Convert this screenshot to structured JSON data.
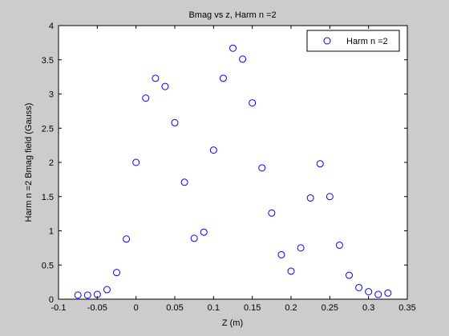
{
  "chart_data": {
    "type": "scatter",
    "title": "Bmag vs z, Harm n =2",
    "xlabel": "Z (m)",
    "ylabel": "Harm n =2 Bmag field (Gauss)",
    "xlim": [
      -0.1,
      0.35
    ],
    "ylim": [
      0,
      4
    ],
    "xticks": [
      -0.1,
      -0.05,
      0,
      0.05,
      0.1,
      0.15,
      0.2,
      0.25,
      0.3,
      0.35
    ],
    "xtick_labels": [
      "-0.1",
      "-0.05",
      "0",
      "0.05",
      "0.1",
      "0.15",
      "0.2",
      "0.25",
      "0.3",
      "0.35"
    ],
    "yticks": [
      0,
      0.5,
      1,
      1.5,
      2,
      2.5,
      3,
      3.5,
      4
    ],
    "ytick_labels": [
      "0",
      "0.5",
      "1",
      "1.5",
      "2",
      "2.5",
      "3",
      "3.5",
      "4"
    ],
    "grid": false,
    "legend_position": "top-right",
    "marker_color": "#0000ff",
    "series": [
      {
        "name": "Harm n =2",
        "x": [
          -0.075,
          -0.0625,
          -0.05,
          -0.0375,
          -0.025,
          -0.0125,
          0,
          0.0125,
          0.025,
          0.0375,
          0.05,
          0.0625,
          0.075,
          0.0875,
          0.1,
          0.1125,
          0.125,
          0.1375,
          0.15,
          0.1625,
          0.175,
          0.1875,
          0.2,
          0.2125,
          0.225,
          0.2375,
          0.25,
          0.2625,
          0.275,
          0.2875,
          0.3,
          0.3125,
          0.325
        ],
        "y": [
          0.06,
          0.06,
          0.07,
          0.14,
          0.39,
          0.88,
          2.0,
          2.94,
          3.23,
          3.11,
          2.58,
          1.71,
          0.89,
          0.98,
          2.18,
          3.23,
          3.67,
          3.51,
          2.87,
          1.92,
          1.26,
          0.65,
          0.41,
          0.75,
          1.48,
          1.98,
          1.5,
          0.79,
          0.35,
          0.17,
          0.11,
          0.07,
          0.09
        ]
      }
    ]
  }
}
